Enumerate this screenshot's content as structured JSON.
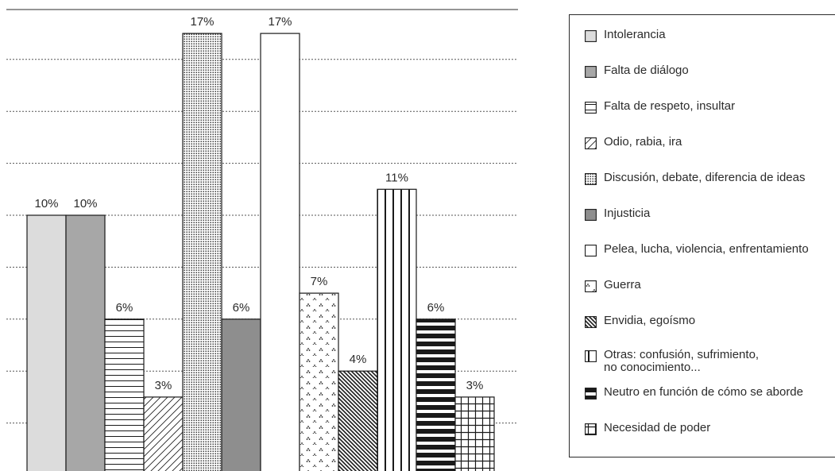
{
  "chart_data": {
    "type": "bar",
    "categories": [
      "Intolerancia",
      "Falta de diálogo",
      "Falta de respeto, insultar",
      "Odio, rabia, ira",
      "Discusión, debate, diferencia de ideas",
      "Injusticia",
      "Pelea, lucha, violencia, enfrentamiento",
      "Guerra",
      "Envidia, egoísmo",
      "Otras: confusión, sufrimiento,\nno conocimiento...",
      "Neutro en función de cómo se aborde",
      "Necesidad de poder"
    ],
    "values": [
      10,
      10,
      6,
      3,
      17,
      6,
      17,
      7,
      4,
      11,
      6,
      3
    ],
    "value_labels": [
      "10%",
      "10%",
      "6%",
      "3%",
      "17%",
      "6%",
      "17%",
      "7%",
      "4%",
      "11%",
      "6%",
      "3%"
    ],
    "ylim": [
      0,
      18
    ],
    "grid": true,
    "legend_position": "right",
    "title": "",
    "xlabel": "",
    "ylabel": ""
  },
  "legend": {
    "items": [
      {
        "label": "Intolerancia",
        "pattern": "light-gray"
      },
      {
        "label": "Falta de diálogo",
        "pattern": "mid-gray"
      },
      {
        "label": "Falta de respeto, insultar",
        "pattern": "horizontal-lines"
      },
      {
        "label": "Odio, rabia, ira",
        "pattern": "diagonal-lines"
      },
      {
        "label": "Discusión, debate, diferencia de ideas",
        "pattern": "dense-dots"
      },
      {
        "label": "Injusticia",
        "pattern": "dark-gray"
      },
      {
        "label": "Pelea, lucha, violencia, enfrentamiento",
        "pattern": "white"
      },
      {
        "label": "Guerra",
        "pattern": "sparse-dots"
      },
      {
        "label": "Envidia, egoísmo",
        "pattern": "dense-diagonal"
      },
      {
        "label": "Otras: confusión, sufrimiento,\nno conocimiento...",
        "pattern": "vertical-lines"
      },
      {
        "label": "Neutro en función de cómo se aborde",
        "pattern": "thick-horizontal"
      },
      {
        "label": "Necesidad de poder",
        "pattern": "grid"
      }
    ]
  },
  "colors": {
    "light_gray": "#dcdcdc",
    "mid_gray": "#a7a7a7",
    "dark_gray": "#8e8e8e",
    "ink": "#1a1a1a"
  }
}
